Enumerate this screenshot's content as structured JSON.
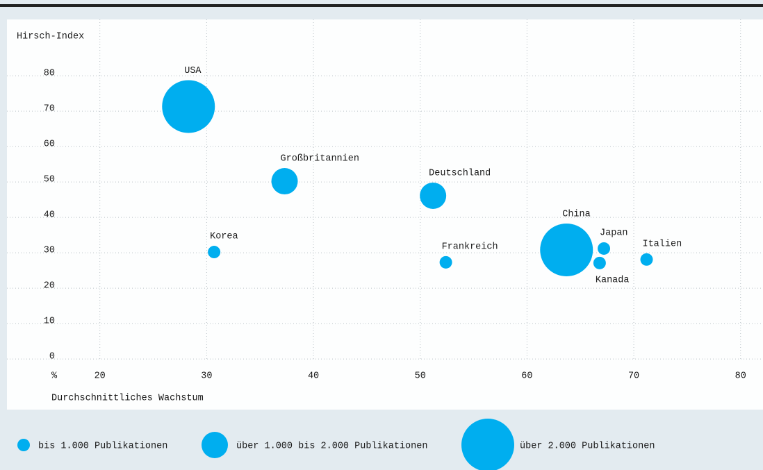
{
  "chart_data": {
    "type": "bubble",
    "y_label": "Hirsch-Index",
    "x_label": "Durchschnittliches Wachstum",
    "x_unit": "%",
    "color": "#00aeef",
    "categories": [
      "USA",
      "Großbritannien",
      "Deutschland",
      "China",
      "Korea",
      "Frankreich",
      "Japan",
      "Kanada",
      "Italien"
    ],
    "x": [
      28.3,
      37.3,
      51.2,
      63.7,
      30.7,
      52.4,
      67.2,
      66.8,
      71.2
    ],
    "values": [
      71.3,
      50.2,
      46.1,
      30.8,
      30.2,
      27.3,
      31.2,
      27.1,
      28.1
    ],
    "size_group": [
      2,
      1,
      1,
      2,
      0,
      0,
      0,
      0,
      0
    ],
    "size_classes": [
      "bis 1.000 Publikationen",
      "über 1.000 bis 2.000 Publikationen",
      "über 2.000 Publikationen"
    ],
    "xlim": [
      11.3,
      82.1
    ],
    "ylim": [
      -14.3,
      95.9
    ],
    "xticks": [
      20,
      30,
      40,
      50,
      60,
      70,
      80
    ],
    "yticks": [
      0,
      10,
      20,
      30,
      40,
      50,
      60,
      70,
      80
    ],
    "grid": true
  }
}
